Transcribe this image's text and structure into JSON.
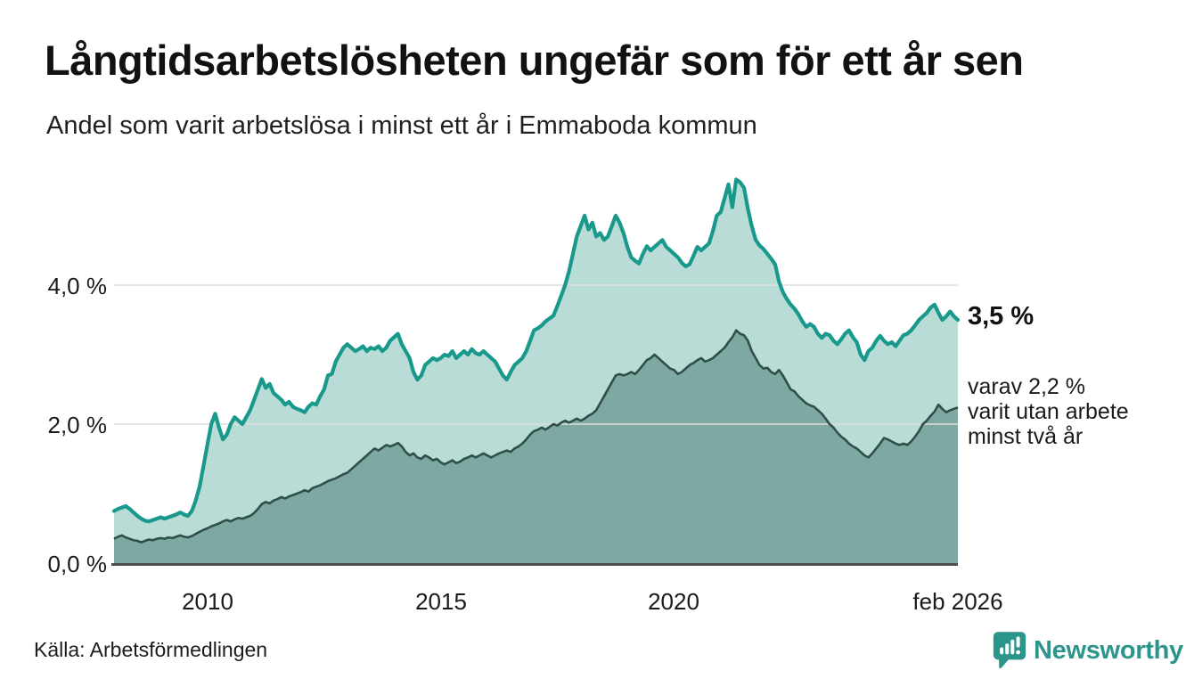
{
  "header": {
    "title": "Långtidsarbetslösheten ungefär som för ett år sen",
    "subtitle": "Andel som varit arbetslösa i minst ett år i Emmaboda kommun"
  },
  "annotations": {
    "latest_value": "3,5 %",
    "secondary": {
      "lines": [
        "varav 2,2 %",
        "varit utan arbete",
        "minst två år"
      ]
    }
  },
  "footer": {
    "source": "Källa: Arbetsförmedlingen",
    "logo_text": "Newsworthy"
  },
  "colors": {
    "series1_line": "#18998b",
    "series1_fill": "#b9dcd6",
    "series2_line": "#2f4f4a",
    "series2_fill": "#7ea9a2",
    "gridline": "#dedede",
    "axis_line": "#4c4c4c",
    "text": "#1a1a1a",
    "logo": "#2c958b"
  },
  "chart_data": {
    "type": "area",
    "title": "Långtidsarbetslösheten ungefär som för ett år sen",
    "subtitle": "Andel som varit arbetslösa i minst ett år i Emmaboda kommun",
    "unit": "%",
    "frequency": "monthly",
    "start": "2008-01",
    "end": "2026-02",
    "ylim": [
      0,
      5.6
    ],
    "grid": true,
    "grid_values": [
      2.0,
      4.0
    ],
    "y_ticks": [
      {
        "value": 0.0,
        "label": "0,0 %"
      },
      {
        "value": 2.0,
        "label": "2,0 %"
      },
      {
        "value": 4.0,
        "label": "4,0 %"
      }
    ],
    "x_ticks": [
      {
        "t": 2010.0,
        "label": "2010"
      },
      {
        "t": 2015.0,
        "label": "2015"
      },
      {
        "t": 2020.0,
        "label": "2020"
      },
      {
        "t": 2026.0833,
        "label": "feb 2026"
      }
    ],
    "series": [
      {
        "name": "Andel arbetslösa minst ett år",
        "latest_value": 3.5,
        "values": [
          0.75,
          0.78,
          0.8,
          0.82,
          0.78,
          0.73,
          0.68,
          0.64,
          0.61,
          0.6,
          0.62,
          0.64,
          0.66,
          0.64,
          0.66,
          0.68,
          0.7,
          0.73,
          0.7,
          0.68,
          0.75,
          0.9,
          1.1,
          1.4,
          1.7,
          2.0,
          2.15,
          1.95,
          1.78,
          1.85,
          2.0,
          2.1,
          2.05,
          2.0,
          2.1,
          2.2,
          2.35,
          2.5,
          2.65,
          2.52,
          2.58,
          2.45,
          2.4,
          2.35,
          2.28,
          2.32,
          2.25,
          2.22,
          2.2,
          2.17,
          2.25,
          2.3,
          2.28,
          2.4,
          2.5,
          2.7,
          2.72,
          2.9,
          3.0,
          3.1,
          3.15,
          3.1,
          3.05,
          3.08,
          3.12,
          3.05,
          3.1,
          3.08,
          3.12,
          3.05,
          3.1,
          3.2,
          3.25,
          3.3,
          3.15,
          3.05,
          2.95,
          2.75,
          2.64,
          2.7,
          2.85,
          2.9,
          2.95,
          2.92,
          2.95,
          3.0,
          2.98,
          3.05,
          2.95,
          3.0,
          3.05,
          3.0,
          3.08,
          3.02,
          3.0,
          3.05,
          3.0,
          2.95,
          2.9,
          2.8,
          2.7,
          2.64,
          2.75,
          2.85,
          2.9,
          2.95,
          3.05,
          3.2,
          3.35,
          3.38,
          3.42,
          3.48,
          3.52,
          3.56,
          3.7,
          3.85,
          4.0,
          4.2,
          4.45,
          4.7,
          4.85,
          5.0,
          4.8,
          4.9,
          4.7,
          4.75,
          4.65,
          4.7,
          4.85,
          5.0,
          4.9,
          4.75,
          4.55,
          4.4,
          4.35,
          4.31,
          4.45,
          4.56,
          4.5,
          4.55,
          4.6,
          4.65,
          4.55,
          4.5,
          4.45,
          4.4,
          4.32,
          4.27,
          4.3,
          4.42,
          4.55,
          4.5,
          4.55,
          4.6,
          4.78,
          5.0,
          5.05,
          5.25,
          5.45,
          5.12,
          5.52,
          5.48,
          5.4,
          5.1,
          4.85,
          4.65,
          4.57,
          4.52,
          4.45,
          4.38,
          4.3,
          4.05,
          3.9,
          3.8,
          3.72,
          3.66,
          3.58,
          3.48,
          3.4,
          3.44,
          3.4,
          3.3,
          3.24,
          3.3,
          3.28,
          3.2,
          3.15,
          3.22,
          3.3,
          3.35,
          3.25,
          3.18,
          3.0,
          2.92,
          3.05,
          3.1,
          3.2,
          3.27,
          3.2,
          3.15,
          3.18,
          3.12,
          3.2,
          3.28,
          3.3,
          3.35,
          3.42,
          3.5,
          3.55,
          3.6,
          3.68,
          3.72,
          3.6,
          3.5,
          3.55,
          3.62,
          3.55,
          3.5
        ]
      },
      {
        "name": "Andel utan arbete minst två år",
        "latest_value": 2.2,
        "values": [
          0.35,
          0.38,
          0.4,
          0.37,
          0.35,
          0.33,
          0.32,
          0.3,
          0.32,
          0.34,
          0.33,
          0.35,
          0.36,
          0.35,
          0.37,
          0.36,
          0.38,
          0.4,
          0.38,
          0.37,
          0.39,
          0.42,
          0.45,
          0.48,
          0.5,
          0.53,
          0.55,
          0.57,
          0.6,
          0.62,
          0.6,
          0.63,
          0.65,
          0.64,
          0.66,
          0.68,
          0.72,
          0.78,
          0.85,
          0.88,
          0.86,
          0.9,
          0.92,
          0.95,
          0.93,
          0.96,
          0.98,
          1.0,
          1.02,
          1.05,
          1.03,
          1.08,
          1.1,
          1.12,
          1.15,
          1.18,
          1.2,
          1.22,
          1.25,
          1.28,
          1.3,
          1.35,
          1.4,
          1.45,
          1.5,
          1.55,
          1.6,
          1.65,
          1.62,
          1.66,
          1.7,
          1.68,
          1.7,
          1.73,
          1.68,
          1.6,
          1.55,
          1.58,
          1.52,
          1.5,
          1.55,
          1.52,
          1.48,
          1.5,
          1.45,
          1.42,
          1.45,
          1.48,
          1.44,
          1.46,
          1.5,
          1.52,
          1.55,
          1.52,
          1.55,
          1.58,
          1.55,
          1.52,
          1.55,
          1.58,
          1.6,
          1.62,
          1.6,
          1.65,
          1.68,
          1.72,
          1.78,
          1.85,
          1.9,
          1.92,
          1.95,
          1.92,
          1.96,
          2.0,
          1.98,
          2.02,
          2.05,
          2.02,
          2.05,
          2.08,
          2.05,
          2.08,
          2.12,
          2.15,
          2.2,
          2.3,
          2.4,
          2.5,
          2.6,
          2.7,
          2.72,
          2.7,
          2.72,
          2.75,
          2.72,
          2.78,
          2.85,
          2.92,
          2.95,
          3.0,
          2.95,
          2.9,
          2.85,
          2.8,
          2.78,
          2.72,
          2.75,
          2.8,
          2.85,
          2.88,
          2.92,
          2.95,
          2.9,
          2.92,
          2.95,
          3.0,
          3.05,
          3.1,
          3.18,
          3.25,
          3.35,
          3.3,
          3.28,
          3.2,
          3.05,
          2.95,
          2.85,
          2.8,
          2.81,
          2.75,
          2.72,
          2.78,
          2.7,
          2.6,
          2.5,
          2.47,
          2.4,
          2.35,
          2.3,
          2.27,
          2.25,
          2.2,
          2.15,
          2.08,
          2.0,
          1.95,
          1.88,
          1.82,
          1.78,
          1.72,
          1.68,
          1.65,
          1.6,
          1.55,
          1.52,
          1.58,
          1.65,
          1.72,
          1.8,
          1.78,
          1.75,
          1.72,
          1.7,
          1.72,
          1.7,
          1.75,
          1.82,
          1.9,
          2.0,
          2.05,
          2.12,
          2.18,
          2.28,
          2.22,
          2.17,
          2.2,
          2.22,
          2.24
        ]
      }
    ]
  }
}
